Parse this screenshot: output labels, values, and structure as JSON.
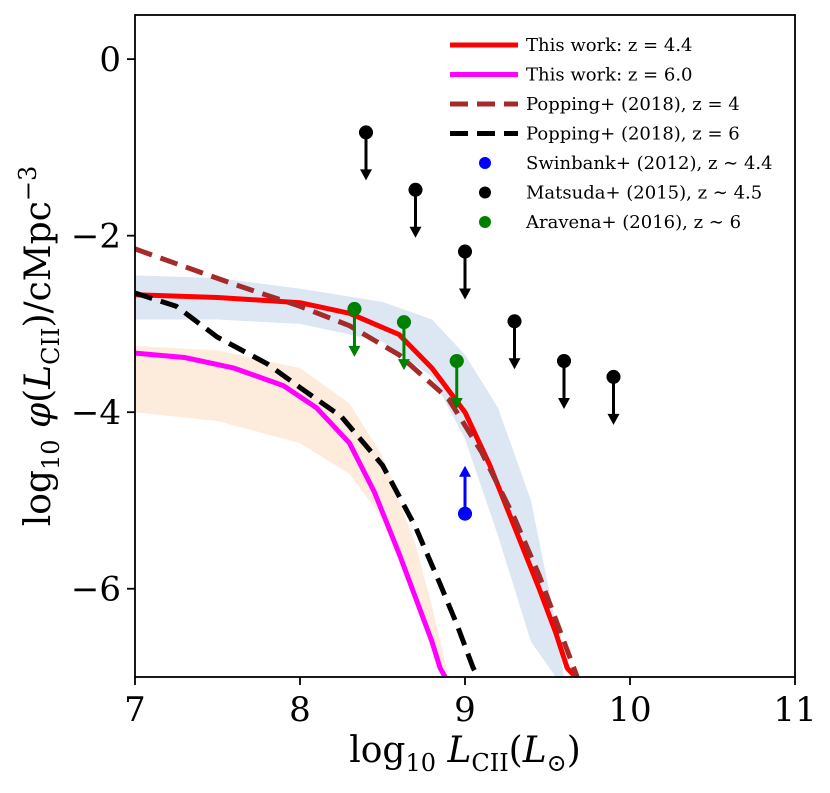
{
  "chart_data": {
    "type": "line",
    "xlabel": "log10 LCII(L⊙)",
    "ylabel": "log10 φ(LCII)/cMpc−3",
    "xlim": [
      7,
      11
    ],
    "ylim": [
      -7,
      0.5
    ],
    "xticks": [
      7,
      8,
      9,
      10,
      11
    ],
    "yticks": [
      0,
      -2,
      -4,
      -6
    ],
    "xtick_labels": [
      "7",
      "8",
      "9",
      "10",
      "11"
    ],
    "ytick_labels": [
      "0",
      "−2",
      "−4",
      "−6"
    ],
    "grid": false,
    "legend_position": "top-right",
    "bands": [
      {
        "name": "This work: z = 4.4 (1σ)",
        "color": "#dce7f3",
        "x": [
          7.0,
          7.5,
          8.0,
          8.5,
          8.8,
          9.0,
          9.2,
          9.4,
          9.55,
          9.6
        ],
        "upper": [
          -2.45,
          -2.48,
          -2.6,
          -2.75,
          -2.95,
          -3.35,
          -3.95,
          -5.0,
          -6.4,
          -7.0
        ],
        "lower": [
          -2.95,
          -2.95,
          -3.0,
          -3.2,
          -3.6,
          -4.3,
          -5.4,
          -6.6,
          -7.0,
          -7.0
        ]
      },
      {
        "name": "This work: z = 6.0 (1σ)",
        "color": "#fdebdc",
        "x": [
          7.0,
          7.5,
          8.0,
          8.3,
          8.5,
          8.7,
          8.8,
          8.9,
          8.92
        ],
        "upper": [
          -3.25,
          -3.3,
          -3.5,
          -3.9,
          -4.5,
          -5.5,
          -6.2,
          -7.0,
          -7.0
        ],
        "lower": [
          -4.0,
          -4.1,
          -4.35,
          -4.7,
          -5.2,
          -6.0,
          -6.6,
          -7.0,
          -7.0
        ]
      }
    ],
    "series": [
      {
        "name": "This work: z = 4.4",
        "color": "#ff0000",
        "style": "solid",
        "width": 5,
        "x": [
          7.0,
          7.5,
          8.0,
          8.3,
          8.6,
          8.8,
          9.0,
          9.15,
          9.3,
          9.45,
          9.55,
          9.62,
          9.67
        ],
        "y": [
          -2.67,
          -2.7,
          -2.76,
          -2.88,
          -3.12,
          -3.5,
          -4.0,
          -4.6,
          -5.3,
          -6.0,
          -6.5,
          -6.9,
          -7.0
        ]
      },
      {
        "name": "This work: z = 6.0",
        "color": "#ff00ff",
        "style": "solid",
        "width": 5,
        "x": [
          7.0,
          7.3,
          7.6,
          7.9,
          8.1,
          8.3,
          8.45,
          8.6,
          8.72,
          8.8,
          8.85,
          8.88
        ],
        "y": [
          -3.33,
          -3.38,
          -3.5,
          -3.7,
          -3.95,
          -4.35,
          -4.9,
          -5.6,
          -6.2,
          -6.6,
          -6.9,
          -7.0
        ]
      },
      {
        "name": "Popping+ (2018), z = 4",
        "color": "#a52a2a",
        "style": "dashed",
        "width": 5,
        "x": [
          7.0,
          7.3,
          7.6,
          8.0,
          8.3,
          8.6,
          8.9,
          9.1,
          9.3,
          9.45,
          9.55,
          9.62,
          9.68
        ],
        "y": [
          -2.15,
          -2.35,
          -2.55,
          -2.8,
          -3.02,
          -3.35,
          -3.85,
          -4.45,
          -5.2,
          -5.85,
          -6.35,
          -6.7,
          -7.0
        ]
      },
      {
        "name": "Popping+ (2018), z = 6",
        "color": "#000000",
        "style": "dashed",
        "width": 5,
        "x": [
          7.0,
          7.25,
          7.5,
          7.8,
          8.0,
          8.25,
          8.5,
          8.7,
          8.85,
          8.95,
          9.0,
          9.05,
          9.08
        ],
        "y": [
          -2.65,
          -2.8,
          -3.15,
          -3.45,
          -3.72,
          -4.05,
          -4.6,
          -5.3,
          -5.95,
          -6.4,
          -6.65,
          -6.9,
          -7.0
        ]
      }
    ],
    "points": [
      {
        "name": "Swinbank+ (2012), z ∼ 4.4",
        "color": "#0000ff",
        "marker": "circle",
        "arrow": "up",
        "data": [
          {
            "x": 9.0,
            "y": -5.15
          }
        ]
      },
      {
        "name": "Matsuda+ (2015), z ∼ 4.5",
        "color": "#000000",
        "marker": "circle",
        "arrow": "down",
        "data": [
          {
            "x": 8.4,
            "y": -0.83
          },
          {
            "x": 8.7,
            "y": -1.48
          },
          {
            "x": 9.0,
            "y": -2.18
          },
          {
            "x": 9.3,
            "y": -2.97
          },
          {
            "x": 9.6,
            "y": -3.42
          },
          {
            "x": 9.9,
            "y": -3.6
          }
        ]
      },
      {
        "name": "Aravena+ (2016), z ∼ 6",
        "color": "#008000",
        "marker": "circle",
        "arrow": "down",
        "data": [
          {
            "x": 8.33,
            "y": -2.83
          },
          {
            "x": 8.63,
            "y": -2.98
          },
          {
            "x": 8.95,
            "y": -3.42
          }
        ]
      }
    ]
  },
  "legend": [
    {
      "label": "This work: z = 4.4",
      "color": "#ff0000",
      "kind": "solid"
    },
    {
      "label": "This work: z = 6.0",
      "color": "#ff00ff",
      "kind": "solid"
    },
    {
      "label": "Popping+ (2018), z = 4",
      "color": "#a52a2a",
      "kind": "dashed"
    },
    {
      "label": "Popping+ (2018), z = 6",
      "color": "#000000",
      "kind": "dashed"
    },
    {
      "label": "Swinbank+ (2012), z ∼ 4.4",
      "color": "#0000ff",
      "kind": "dot"
    },
    {
      "label": "Matsuda+ (2015), z ∼ 4.5",
      "color": "#000000",
      "kind": "dot"
    },
    {
      "label": "Aravena+ (2016), z ∼ 6",
      "color": "#008000",
      "kind": "dot"
    }
  ]
}
